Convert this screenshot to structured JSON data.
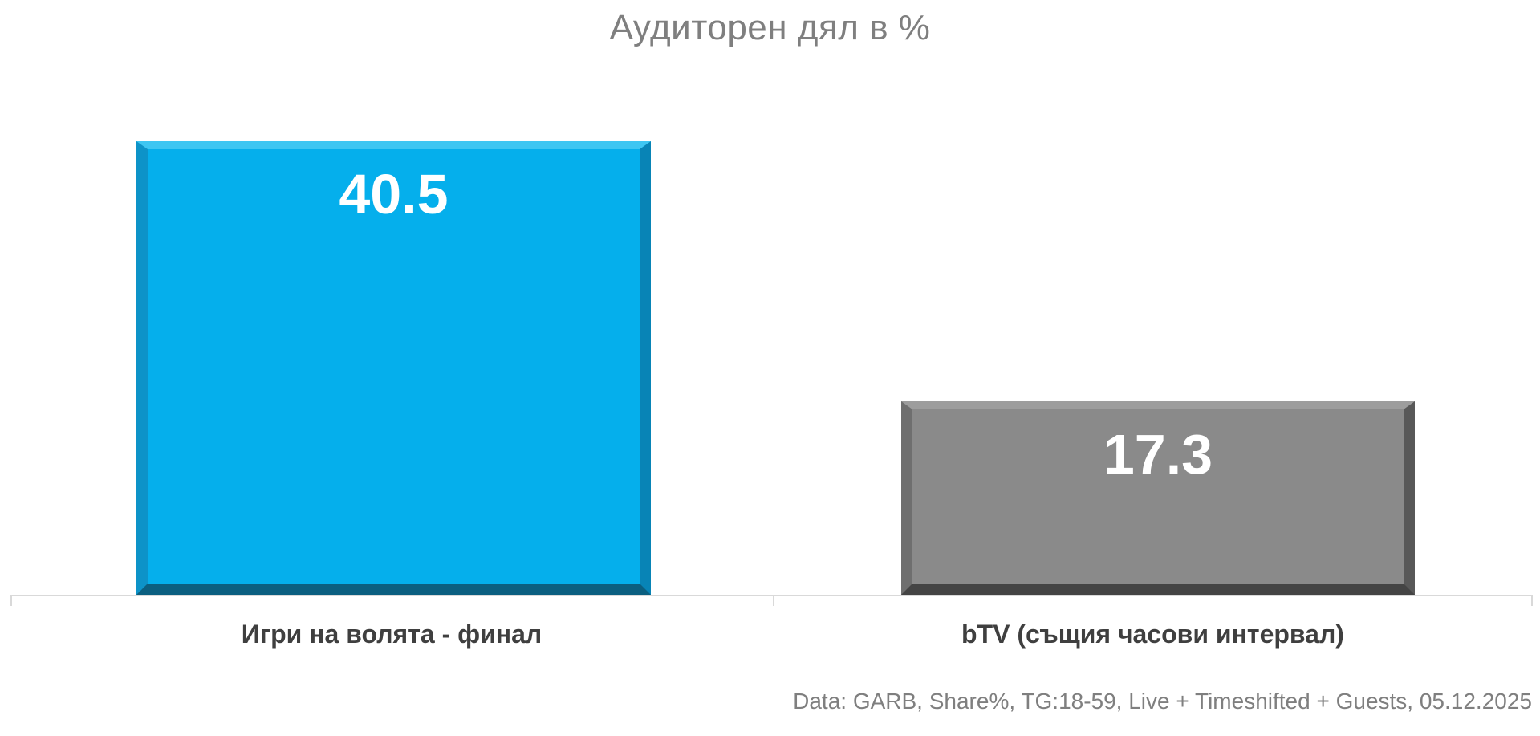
{
  "page": {
    "background": "#FFFFFF"
  },
  "chart_data": {
    "type": "bar",
    "title": "Аудиторен дял в %",
    "categories": [
      "Игри на волята - финал",
      "bTV (същия часови интервал)"
    ],
    "values": [
      40.5,
      17.3
    ],
    "value_labels": [
      "40.5",
      "17.3"
    ],
    "xlabel": "",
    "ylabel": "",
    "ylim": [
      0,
      40.5
    ],
    "grid": false,
    "legend_position": "none",
    "value_label_position": "inside-top",
    "axis_color": "#D9D9D9",
    "title_color": "#7F7F7F",
    "category_label_color": "#3F3F3F",
    "value_label_color": "#FFFFFF",
    "bar_styles": [
      {
        "name": "Игри на волята - финал",
        "fill": "#05AFEC",
        "bevel_top": "#3EC6F2",
        "bevel_left": "#0D93C8",
        "bevel_right": "#0884B6",
        "bevel_bottom": "#0B5F80"
      },
      {
        "name": "bTV (същия часови интервал)",
        "fill": "#8A8A8A",
        "bevel_top": "#9D9D9D",
        "bevel_left": "#6F6F6F",
        "bevel_right": "#585858",
        "bevel_bottom": "#444444"
      }
    ]
  },
  "footer": {
    "text": "Data: GARB, Share%, TG:18-59, Live + Timeshifted + Guests, 05.12.2025",
    "color": "#7F7F7F"
  }
}
